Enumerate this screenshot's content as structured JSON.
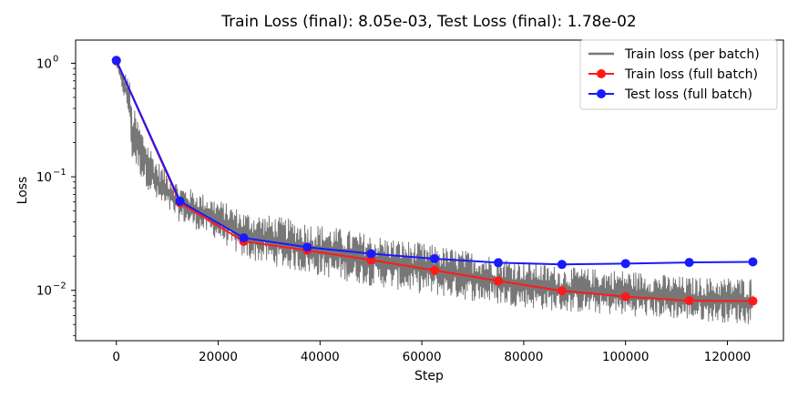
{
  "chart_data": {
    "type": "line",
    "title": "Train Loss (final): 8.05e-03, Test Loss (final): 1.78e-02",
    "xlabel": "Step",
    "ylabel": "Loss",
    "yscale": "log",
    "xlim": [
      -8000,
      131000
    ],
    "ylim": [
      0.0036,
      1.6
    ],
    "x_ticks": [
      0,
      20000,
      40000,
      60000,
      80000,
      100000,
      120000
    ],
    "x_tick_labels": [
      "0",
      "20000",
      "40000",
      "60000",
      "80000",
      "100000",
      "120000"
    ],
    "y_ticks": [
      1,
      0.1,
      0.01
    ],
    "y_tick_labels": [
      {
        "base": "10",
        "exp": "0"
      },
      {
        "base": "10",
        "exp": "−1"
      },
      {
        "base": "10",
        "exp": "−2"
      }
    ],
    "legend_position": "top-right",
    "series": [
      {
        "name": "Train loss (per batch)",
        "color": "#777777",
        "marker": "none",
        "envelope": {
          "x": [
            0,
            1000,
            2500,
            3000,
            5000,
            8000,
            12500,
            20000,
            25000,
            37500,
            50000,
            62500,
            75000,
            87500,
            100000,
            112500,
            125000
          ],
          "upper": [
            1.08,
            0.86,
            0.78,
            0.45,
            0.27,
            0.14,
            0.085,
            0.063,
            0.05,
            0.04,
            0.031,
            0.025,
            0.02,
            0.016,
            0.015,
            0.013,
            0.013
          ],
          "lower": [
            0.94,
            0.62,
            0.32,
            0.14,
            0.095,
            0.058,
            0.04,
            0.028,
            0.019,
            0.014,
            0.011,
            0.009,
            0.0075,
            0.0065,
            0.006,
            0.0055,
            0.005
          ]
        }
      },
      {
        "name": "Train loss (full batch)",
        "color": "#ff1a1a",
        "marker": "circle",
        "x": [
          0,
          12500,
          25000,
          37500,
          50000,
          62500,
          75000,
          87500,
          100000,
          112500,
          125000
        ],
        "values": [
          1.05,
          0.059,
          0.027,
          0.0225,
          0.0185,
          0.015,
          0.0121,
          0.0099,
          0.0088,
          0.0081,
          0.00805
        ]
      },
      {
        "name": "Test loss (full batch)",
        "color": "#1a1aff",
        "marker": "circle",
        "x": [
          0,
          12500,
          25000,
          37500,
          50000,
          62500,
          75000,
          87500,
          100000,
          112500,
          125000
        ],
        "values": [
          1.06,
          0.061,
          0.029,
          0.024,
          0.021,
          0.019,
          0.0175,
          0.0169,
          0.0172,
          0.0176,
          0.0178
        ]
      }
    ]
  }
}
